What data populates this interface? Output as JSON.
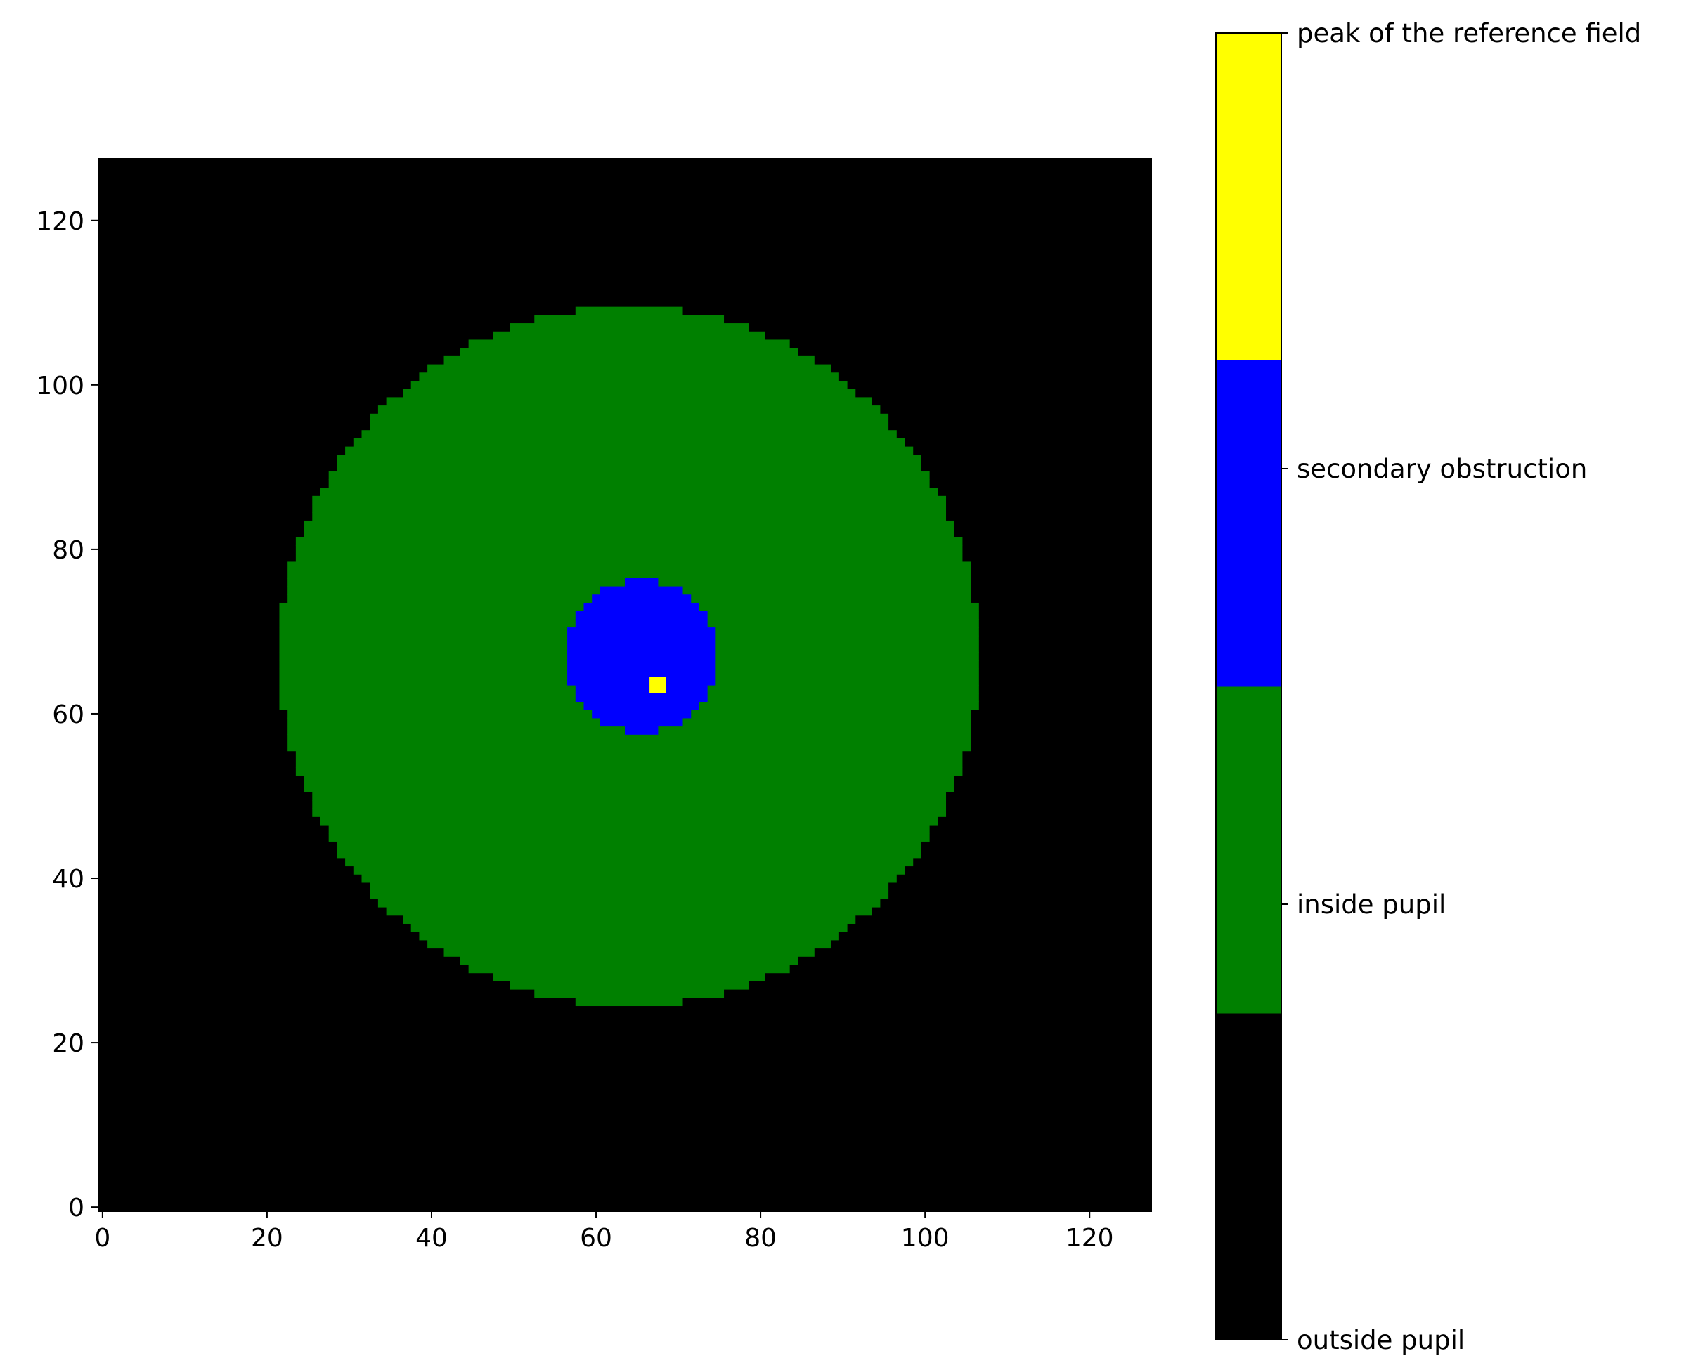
{
  "chart_data": {
    "type": "heatmap",
    "title": "",
    "xlabel": "",
    "ylabel": "",
    "image_shape": [
      128,
      128
    ],
    "xlim": [
      -0.5,
      127.5
    ],
    "ylim": [
      127.5,
      -0.5
    ],
    "x_ticks": [
      0,
      20,
      40,
      60,
      80,
      100,
      120
    ],
    "y_ticks": [
      0,
      20,
      40,
      60,
      80,
      100,
      120
    ],
    "x_tick_labels": [
      "0",
      "20",
      "40",
      "60",
      "80",
      "100",
      "120"
    ],
    "y_tick_labels": [
      "0",
      "20",
      "40",
      "60",
      "80",
      "100",
      "120"
    ],
    "grid": false,
    "regions": {
      "outside": {
        "value": 0,
        "color": "#000000"
      },
      "pupil": {
        "value": 1,
        "color": "#008000",
        "center": [
          64,
          68
        ],
        "radius": 42.5
      },
      "obstruction": {
        "value": 2,
        "color": "#0000ff",
        "center": [
          65.5,
          68
        ],
        "radius": 9.2
      },
      "peak": {
        "value": 3,
        "color": "#ffff00",
        "x": 67.5,
        "y": 65.5
      }
    },
    "colorbar": {
      "placement": "right",
      "categories": [
        {
          "label": "outside pupil",
          "color": "#000000"
        },
        {
          "label": "inside pupil",
          "color": "#008000"
        },
        {
          "label": "secondary obstruction",
          "color": "#0000ff"
        },
        {
          "label": "peak of the reference field",
          "color": "#ffff00"
        }
      ]
    }
  }
}
